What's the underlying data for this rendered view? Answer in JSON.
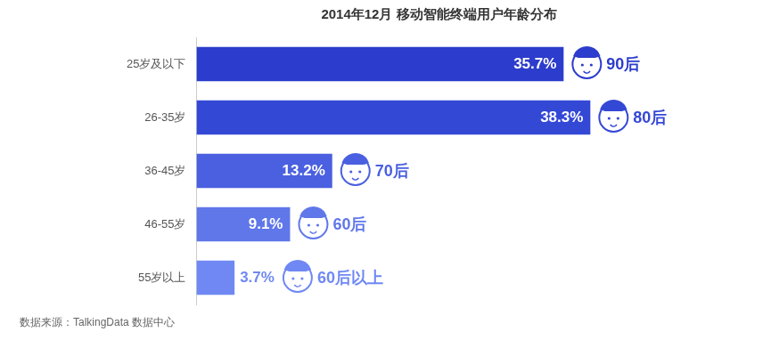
{
  "chart_data": {
    "type": "bar",
    "title": "2014年12月 移动智能终端用户年龄分布",
    "orientation": "horizontal",
    "categories": [
      "25岁及以下",
      "26-35岁",
      "36-45岁",
      "46-55岁",
      "55岁以上"
    ],
    "values": [
      35.7,
      38.3,
      13.2,
      9.1,
      3.7
    ],
    "value_labels": [
      "35.7%",
      "38.3%",
      "13.2%",
      "9.1%",
      "3.7%"
    ],
    "data_labels": true,
    "colors": [
      "#2c3ccc",
      "#3448d6",
      "#4a60e0",
      "#6077ea",
      "#6f88f4"
    ],
    "annotations": [
      "90后",
      "80后",
      "70后",
      "60后",
      "60后以上"
    ],
    "xlim": [
      0,
      55
    ],
    "grid": false,
    "tick_labels": "y",
    "source": "数据来源：TalkingData 数据中心"
  }
}
